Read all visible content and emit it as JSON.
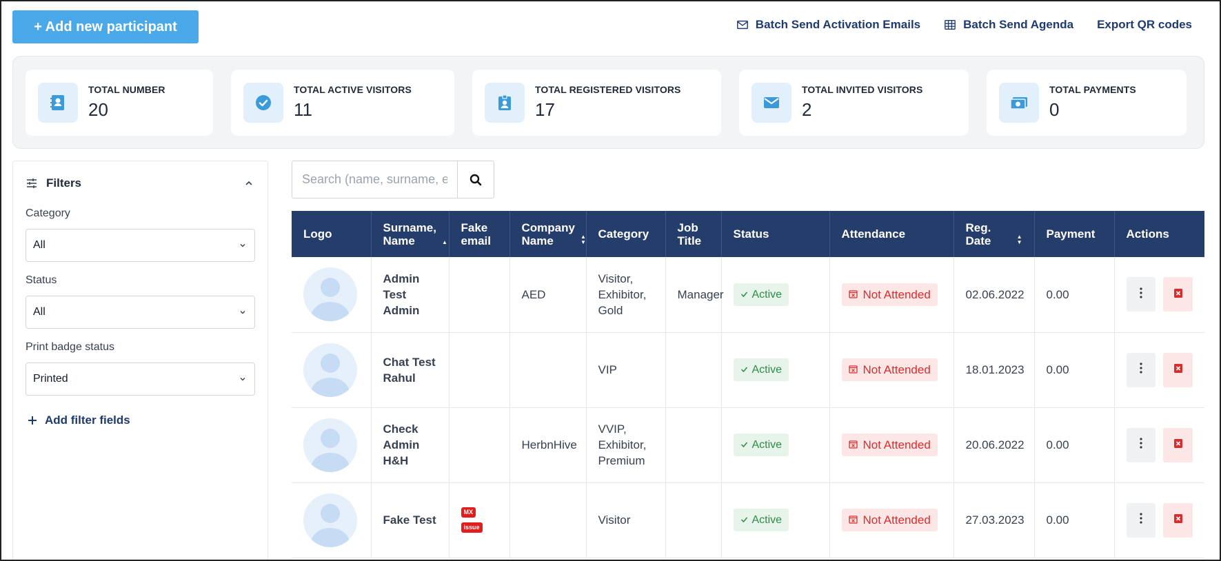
{
  "toolbar": {
    "add_button": "+ Add new participant",
    "batch_activation": "Batch Send Activation Emails",
    "batch_agenda": "Batch Send Agenda",
    "export_qr": "Export QR codes"
  },
  "stats": [
    {
      "label": "TOTAL NUMBER",
      "value": "20",
      "icon": "contact-card-icon"
    },
    {
      "label": "TOTAL ACTIVE VISITORS",
      "value": "11",
      "icon": "check-circle-icon"
    },
    {
      "label": "TOTAL REGISTERED VISITORS",
      "value": "17",
      "icon": "badge-icon"
    },
    {
      "label": "TOTAL INVITED VISITORS",
      "value": "2",
      "icon": "mail-icon"
    },
    {
      "label": "TOTAL PAYMENTS",
      "value": "0",
      "icon": "money-icon"
    }
  ],
  "filters": {
    "title": "Filters",
    "category_label": "Category",
    "category_value": "All",
    "status_label": "Status",
    "status_value": "All",
    "print_label": "Print badge status",
    "print_value": "Printed",
    "add_filter": "Add filter fields"
  },
  "search": {
    "placeholder": "Search (name, surname, e"
  },
  "table": {
    "headers": {
      "logo": "Logo",
      "name": "Surname, Name",
      "fake_email": "Fake email",
      "company": "Company Name",
      "category": "Category",
      "job": "Job Title",
      "status": "Status",
      "attendance": "Attendance",
      "reg_date": "Reg. Date",
      "payment": "Payment",
      "actions": "Actions"
    },
    "rows": [
      {
        "name": "Admin Test Admin",
        "fake": "",
        "company": "AED",
        "category": "Visitor, Exhibitor, Gold",
        "job": "Manager",
        "status": "Active",
        "attendance": "Not Attended",
        "date": "02.06.2022",
        "payment": "0.00"
      },
      {
        "name": "Chat Test Rahul",
        "fake": "",
        "company": "",
        "category": "VIP",
        "job": "",
        "status": "Active",
        "attendance": "Not Attended",
        "date": "18.01.2023",
        "payment": "0.00"
      },
      {
        "name": "Check Admin H&H",
        "fake": "",
        "company": "HerbnHive",
        "category": "VVIP, Exhibitor, Premium",
        "job": "",
        "status": "Active",
        "attendance": "Not Attended",
        "date": "20.06.2022",
        "payment": "0.00"
      },
      {
        "name": "Fake Test",
        "fake_tags": [
          "MX",
          "issue"
        ],
        "company": "",
        "category": "Visitor",
        "job": "",
        "status": "Active",
        "attendance": "Not Attended",
        "date": "27.03.2023",
        "payment": "0.00"
      }
    ]
  },
  "colors": {
    "primary": "#4aa9e9",
    "header_bg": "#253d6b",
    "link": "#1e3a6e",
    "active_green": "#2f8a4a",
    "danger_red": "#d92d2d"
  }
}
